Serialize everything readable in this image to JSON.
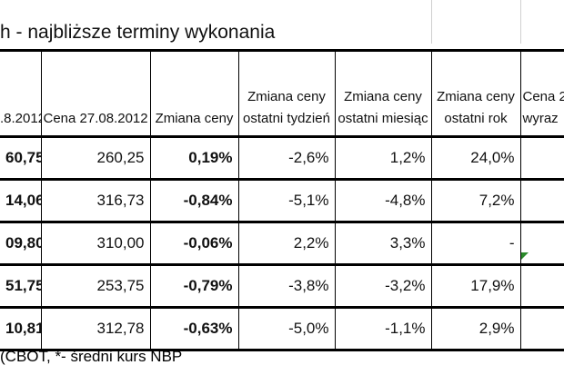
{
  "title": "h - najbliższe terminy wykonania",
  "table": {
    "header": [
      [
        ".8.2012"
      ],
      [
        "Cena 27.08.2012"
      ],
      [
        "Zmiana ceny"
      ],
      [
        "Zmiana ceny",
        "ostatni tydzień"
      ],
      [
        "Zmiana ceny",
        "ostatni miesiąc"
      ],
      [
        "Zmiana ceny",
        "ostatni rok"
      ],
      [
        "Cena 2",
        "wyraz"
      ]
    ],
    "rows": [
      [
        "60,75",
        "260,25",
        "0,19%",
        "-2,6%",
        "1,2%",
        "24,0%"
      ],
      [
        "14,06",
        "316,73",
        "-0,84%",
        "-5,1%",
        "-4,8%",
        "7,2%"
      ],
      [
        "09,80",
        "310,00",
        "-0,06%",
        "2,2%",
        "3,3%",
        "-"
      ],
      [
        "51,75",
        "253,75",
        "-0,79%",
        "-3,8%",
        "-3,2%",
        "17,9%"
      ],
      [
        "10,81",
        "312,78",
        "-0,63%",
        "-5,0%",
        "-1,1%",
        "2,9%"
      ]
    ]
  },
  "footer": "(CBOT, *- średni kurs NBP"
}
